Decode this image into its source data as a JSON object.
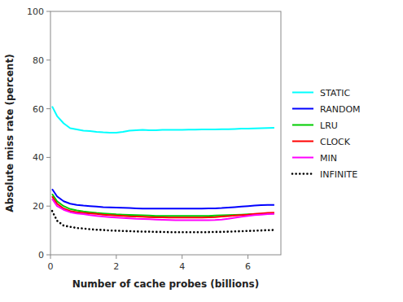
{
  "chart_data": {
    "type": "line",
    "xlabel": "Number of cache probes (billions)",
    "ylabel": "Absolute miss rate (percent)",
    "xlim": [
      0,
      7
    ],
    "ylim": [
      0,
      100
    ],
    "xticks": [
      0,
      2,
      4,
      6
    ],
    "yticks": [
      0,
      20,
      40,
      60,
      80,
      100
    ],
    "grid": false,
    "legend": "right",
    "x": [
      0.05,
      0.2,
      0.4,
      0.6,
      0.8,
      1.0,
      1.2,
      1.4,
      1.6,
      1.8,
      2.0,
      2.2,
      2.4,
      2.6,
      2.8,
      3.0,
      3.2,
      3.4,
      3.6,
      3.8,
      4.0,
      4.2,
      4.4,
      4.6,
      4.8,
      5.0,
      5.2,
      5.4,
      5.6,
      5.8,
      6.0,
      6.2,
      6.4,
      6.6,
      6.8
    ],
    "series": [
      {
        "name": "STATIC",
        "color": "#00ffff",
        "line_style": "solid",
        "values": [
          61,
          57,
          54,
          52,
          51.5,
          51,
          50.8,
          50.5,
          50.3,
          50.2,
          50.2,
          50.5,
          51,
          51.2,
          51.3,
          51.2,
          51.2,
          51.3,
          51.3,
          51.3,
          51.3,
          51.4,
          51.4,
          51.5,
          51.5,
          51.5,
          51.6,
          51.6,
          51.7,
          51.8,
          51.8,
          51.9,
          52.0,
          52.1,
          52.2
        ]
      },
      {
        "name": "RANDOM",
        "color": "#0000ff",
        "line_style": "solid",
        "values": [
          27,
          24,
          22,
          21,
          20.5,
          20.2,
          20.0,
          19.8,
          19.6,
          19.5,
          19.4,
          19.3,
          19.2,
          19.1,
          19.0,
          19.0,
          19.0,
          19.0,
          19.0,
          19.0,
          19.0,
          19.0,
          19.0,
          19.0,
          19.1,
          19.1,
          19.2,
          19.4,
          19.6,
          19.8,
          20.0,
          20.2,
          20.4,
          20.5,
          20.5
        ]
      },
      {
        "name": "LRU",
        "color": "#00cc00",
        "line_style": "solid",
        "values": [
          25,
          22,
          20,
          18.8,
          18.2,
          17.8,
          17.5,
          17.2,
          17.0,
          16.8,
          16.6,
          16.5,
          16.4,
          16.3,
          16.2,
          16.1,
          16.0,
          16.0,
          16.0,
          16.0,
          16.0,
          16.0,
          16.0,
          16.0,
          16.0,
          16.1,
          16.2,
          16.3,
          16.4,
          16.5,
          16.6,
          16.7,
          16.8,
          16.9,
          17.0
        ]
      },
      {
        "name": "CLOCK",
        "color": "#ff0000",
        "line_style": "solid",
        "values": [
          24,
          21,
          19,
          18,
          17.5,
          17.2,
          17.0,
          16.8,
          16.5,
          16.3,
          16.1,
          16.0,
          15.8,
          15.7,
          15.6,
          15.5,
          15.4,
          15.4,
          15.3,
          15.3,
          15.3,
          15.3,
          15.3,
          15.3,
          15.4,
          15.5,
          15.7,
          15.9,
          16.1,
          16.3,
          16.5,
          16.8,
          17.0,
          17.2,
          17.3
        ]
      },
      {
        "name": "MIN",
        "color": "#ff00ff",
        "line_style": "solid",
        "values": [
          23,
          20,
          18.5,
          17.5,
          17.0,
          16.7,
          16.3,
          16.0,
          15.7,
          15.5,
          15.3,
          15.1,
          15.0,
          14.8,
          14.7,
          14.6,
          14.5,
          14.4,
          14.3,
          14.2,
          14.2,
          14.2,
          14.2,
          14.2,
          14.2,
          14.3,
          14.5,
          14.8,
          15.2,
          15.6,
          16.0,
          16.3,
          16.5,
          16.7,
          16.8
        ]
      },
      {
        "name": "INFINITE",
        "color": "#000000",
        "line_style": "dotted",
        "values": [
          18,
          14,
          12,
          11.5,
          11.0,
          10.8,
          10.5,
          10.3,
          10.2,
          10.0,
          9.9,
          9.8,
          9.7,
          9.6,
          9.5,
          9.5,
          9.4,
          9.4,
          9.3,
          9.3,
          9.3,
          9.3,
          9.3,
          9.3,
          9.3,
          9.4,
          9.4,
          9.5,
          9.6,
          9.7,
          9.8,
          9.9,
          10.0,
          10.1,
          10.2
        ]
      }
    ]
  }
}
